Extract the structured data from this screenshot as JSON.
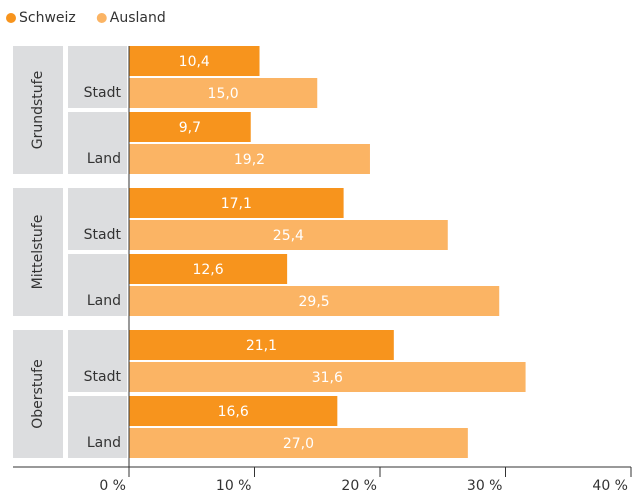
{
  "chart_data": {
    "type": "bar",
    "orientation": "horizontal",
    "groups": [
      "Grundstufe",
      "Mittelstufe",
      "Oberstufe"
    ],
    "categories": [
      "Stadt",
      "Land",
      "Stadt",
      "Land",
      "Stadt",
      "Land"
    ],
    "series": [
      {
        "name": "Schweiz",
        "color": "#f7941d",
        "values": [
          10.4,
          9.7,
          17.1,
          12.6,
          21.1,
          16.6
        ],
        "value_labels": [
          "10,4",
          "9,7",
          "17,1",
          "12,6",
          "21,1",
          "16,6"
        ]
      },
      {
        "name": "Ausland",
        "color": "#fbb464",
        "values": [
          15.0,
          19.2,
          25.4,
          29.5,
          31.6,
          27.0
        ],
        "value_labels": [
          "15,0",
          "19,2",
          "25,4",
          "29,5",
          "31,6",
          "27,0"
        ]
      }
    ],
    "xlim": [
      0,
      40
    ],
    "xticks": [
      {
        "value": 0,
        "label": "0 %"
      },
      {
        "value": 10,
        "label": "10 %"
      },
      {
        "value": 20,
        "label": "20 %"
      },
      {
        "value": 30,
        "label": "30 %"
      },
      {
        "value": 40,
        "label": "40 %"
      }
    ],
    "legend": "top-left"
  }
}
